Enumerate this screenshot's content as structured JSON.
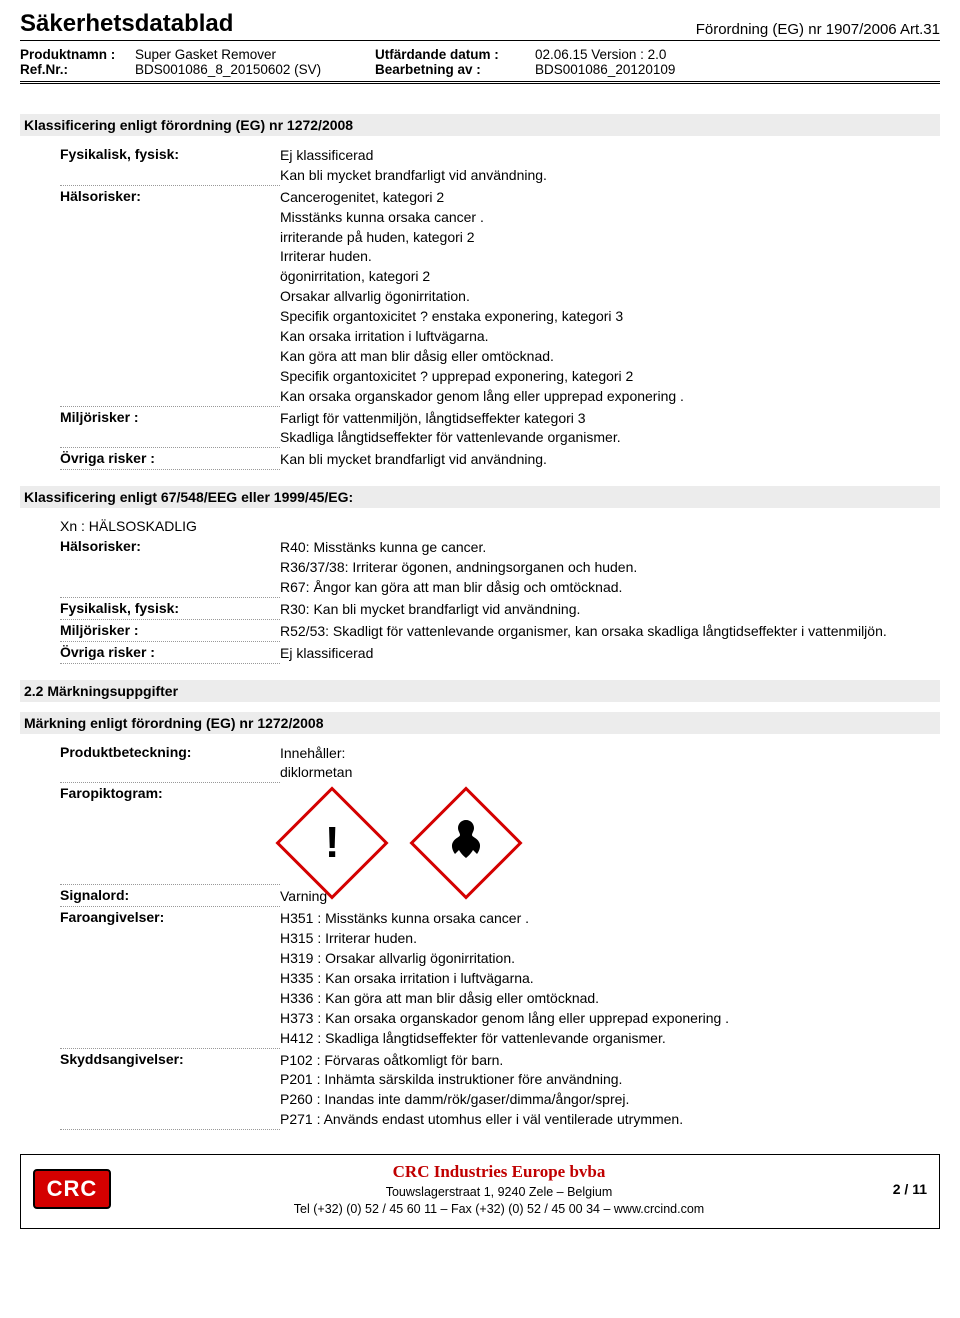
{
  "header": {
    "title": "Säkerhetsdatablad",
    "regulation": "Förordning (EG) nr 1907/2006 Art.31",
    "meta": {
      "product_label": "Produktnamn :",
      "product_value": "Super Gasket Remover",
      "ref_label": "Ref.Nr.:",
      "ref_value": "BDS001086_8_20150602 (SV)",
      "issue_label": "Utfärdande datum :",
      "issue_value": "02.06.15 Version : 2.0",
      "rev_label": "Bearbetning av :",
      "rev_value": "BDS001086_20120109"
    }
  },
  "s1": {
    "heading": "Klassificering enligt förordning (EG) nr 1272/2008",
    "rows": {
      "phys_label": "Fysikalisk, fysisk:",
      "phys_lines": [
        "Ej klassificerad",
        "Kan bli mycket brandfarligt vid användning."
      ],
      "health_label": "Hälsorisker:",
      "health_lines": [
        "Cancerogenitet, kategori 2",
        "Misstänks kunna orsaka cancer .",
        "irriterande på huden, kategori 2",
        "Irriterar huden.",
        "ögonirritation, kategori 2",
        "Orsakar allvarlig ögonirritation.",
        "Specifik organtoxicitet ? enstaka exponering, kategori 3",
        "Kan orsaka irritation i luftvägarna.",
        "Kan göra att man blir dåsig eller omtöcknad.",
        "Specifik organtoxicitet ? upprepad exponering, kategori 2",
        "Kan orsaka organskador genom lång eller upprepad exponering ."
      ],
      "env_label": "Miljörisker :",
      "env_lines": [
        "Farligt för vattenmiljön, långtidseffekter kategori 3",
        "Skadliga långtidseffekter för vattenlevande organismer."
      ],
      "other_label": "Övriga risker :",
      "other_lines": [
        "Kan bli mycket brandfarligt vid användning."
      ]
    }
  },
  "s2": {
    "heading": "Klassificering enligt 67/548/EEG eller 1999/45/EG:",
    "xn": "Xn : HÄLSOSKADLIG",
    "rows": {
      "health_label": "Hälsorisker:",
      "health_lines": [
        "R40: Misstänks kunna ge cancer.",
        "R36/37/38: Irriterar ögonen, andningsorganen och huden.",
        "R67: Ångor kan göra att man blir dåsig och omtöcknad."
      ],
      "phys_label": "Fysikalisk, fysisk:",
      "phys_lines": [
        "R30: Kan bli mycket brandfarligt vid användning."
      ],
      "env_label": "Miljörisker :",
      "env_lines": [
        "R52/53: Skadligt för vattenlevande organismer, kan orsaka skadliga långtidseffekter i vattenmiljön."
      ],
      "other_label": "Övriga risker :",
      "other_lines": [
        "Ej klassificerad"
      ]
    }
  },
  "s3": {
    "sub22": "2.2 Märkningsuppgifter",
    "heading": "Märkning enligt förordning (EG) nr 1272/2008",
    "rows": {
      "prod_label": "Produktbeteckning:",
      "prod_lines": [
        "Innehåller:",
        "diklormetan"
      ],
      "picto_label": "Faropiktogram:",
      "signal_label": "Signalord:",
      "signal_lines": [
        "Varning"
      ],
      "hazard_label": "Faroangivelser:",
      "hazard_lines": [
        "H351 : Misstänks kunna orsaka cancer .",
        "H315 : Irriterar huden.",
        "H319 : Orsakar allvarlig ögonirritation.",
        "H335 : Kan orsaka irritation i luftvägarna.",
        "H336 : Kan göra att man blir dåsig eller omtöcknad.",
        "H373 : Kan orsaka organskador genom lång eller upprepad exponering .",
        "H412 : Skadliga långtidseffekter för vattenlevande organismer."
      ],
      "prec_label": "Skyddsangivelser:",
      "prec_lines": [
        "P102 : Förvaras oåtkomligt för barn.",
        "P201 : Inhämta särskilda instruktioner före användning.",
        "P260 : Inandas inte damm/rök/gaser/dimma/ångor/sprej.",
        "P271 : Används endast utomhus eller i väl ventilerade utrymmen."
      ]
    }
  },
  "footer": {
    "logo": "CRC",
    "company": "CRC Industries Europe bvba",
    "addr": "Touwslagerstraat 1,  9240 Zele – Belgium",
    "tel": "Tel (+32) (0) 52 / 45 60 11 – Fax (+32) (0) 52 / 45 00 34 –  www.crcind.com",
    "page": "2 / 11"
  },
  "icons": {
    "exclaim": "!",
    "health": "✷"
  }
}
